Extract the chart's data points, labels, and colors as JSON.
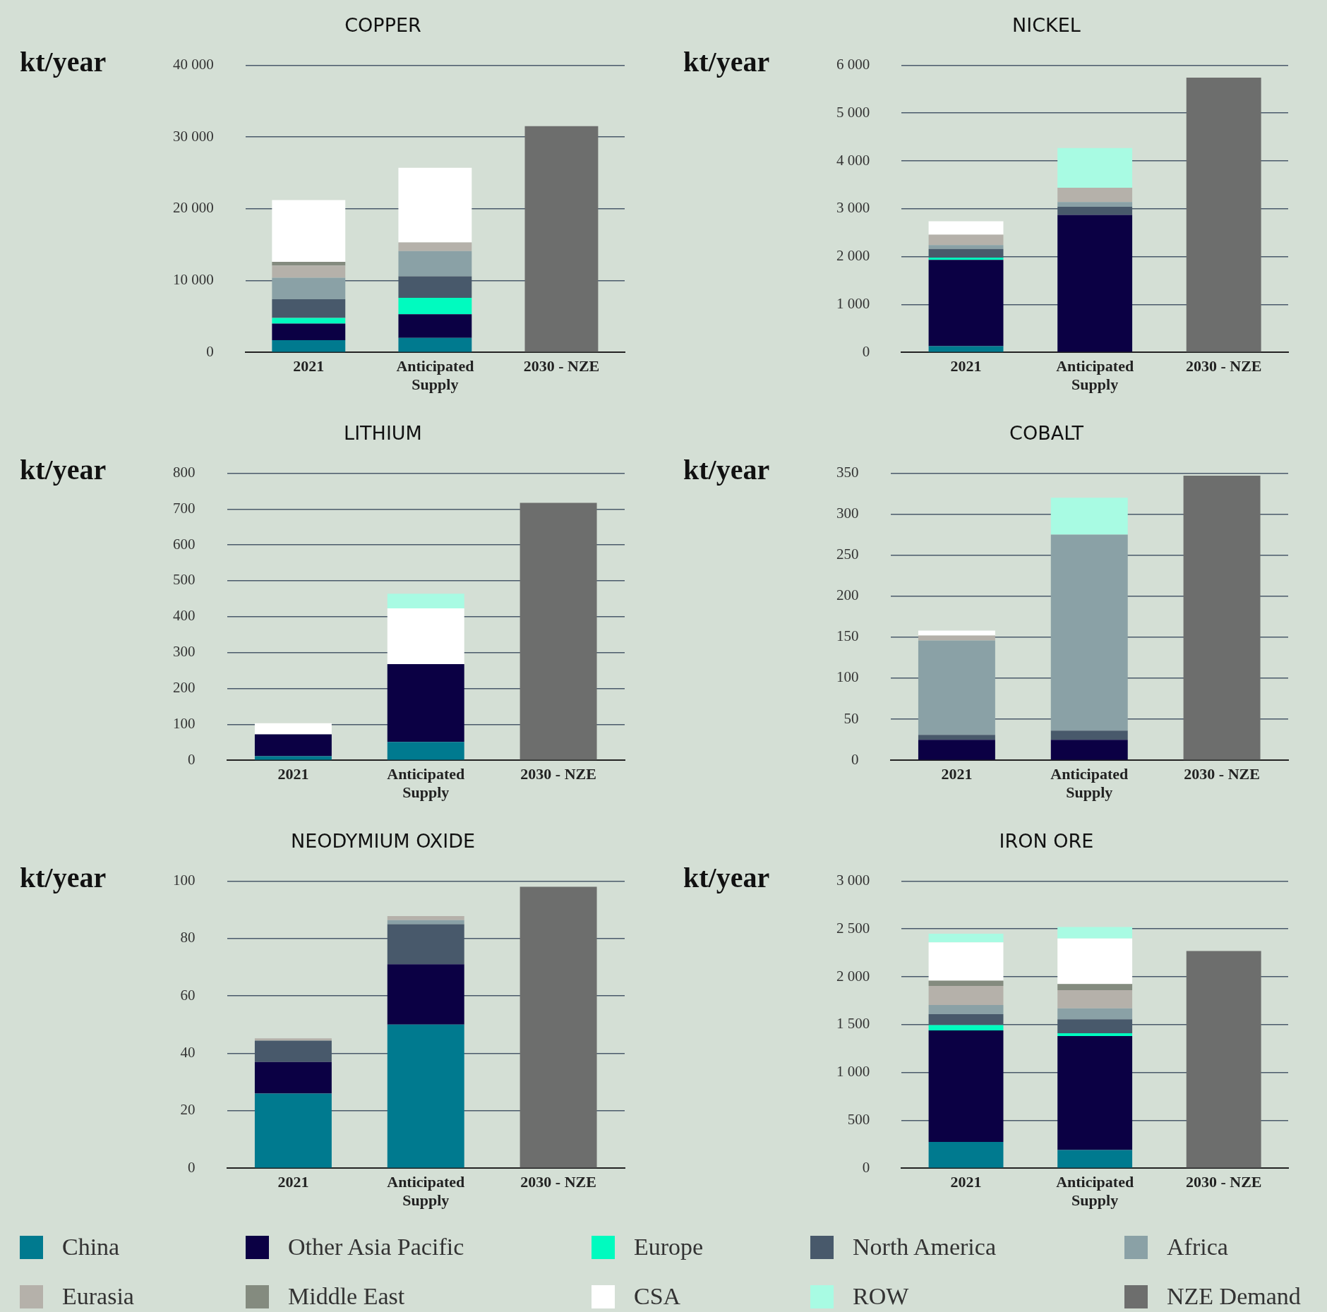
{
  "chart_data": [
    {
      "type": "bar",
      "title": "COPPER",
      "ylabel": "kt/year",
      "categories": [
        "2021",
        "Anticipated Supply",
        "2030 - NZE"
      ],
      "stacked": true,
      "grid": "y",
      "legend": "bottom",
      "ylim": [
        0,
        40000
      ],
      "yticks": [
        {
          "value": 0,
          "label": "0"
        },
        {
          "value": 10000,
          "label": "10 000"
        },
        {
          "value": 20000,
          "label": "20 000"
        },
        {
          "value": 30000,
          "label": "30 000"
        },
        {
          "value": 40000,
          "label": "40 000"
        }
      ],
      "series": [
        {
          "name": "China",
          "color": "#007a8f",
          "values": [
            1700,
            2000,
            null
          ]
        },
        {
          "name": "Other Asia Pacific",
          "color": "#0b0044",
          "values": [
            2300,
            3300,
            null
          ]
        },
        {
          "name": "Europe",
          "color": "#00fbbf",
          "values": [
            800,
            2300,
            null
          ]
        },
        {
          "name": "North America",
          "color": "#48596b",
          "values": [
            2600,
            3000,
            null
          ]
        },
        {
          "name": "Africa",
          "color": "#8aa1a6",
          "values": [
            3000,
            3500,
            null
          ]
        },
        {
          "name": "Eurasia",
          "color": "#b5b1aa",
          "values": [
            1700,
            1200,
            null
          ]
        },
        {
          "name": "Middle East",
          "color": "#848b7f",
          "values": [
            500,
            null,
            null
          ]
        },
        {
          "name": "CSA",
          "color": "#ffffff",
          "values": [
            8600,
            10400,
            null
          ]
        },
        {
          "name": "ROW",
          "color": "#a8fbe3",
          "values": [
            null,
            null,
            null
          ]
        },
        {
          "name": "NZE Demand",
          "color": "#6d6e6d",
          "values": [
            null,
            null,
            31500
          ]
        }
      ]
    },
    {
      "type": "bar",
      "title": "NICKEL",
      "ylabel": "kt/year",
      "categories": [
        "2021",
        "Anticipated Supply",
        "2030 - NZE"
      ],
      "stacked": true,
      "grid": "y",
      "ylim": [
        0,
        6000
      ],
      "yticks": [
        {
          "value": 0,
          "label": "0"
        },
        {
          "value": 1000,
          "label": "1 000"
        },
        {
          "value": 2000,
          "label": "2 000"
        },
        {
          "value": 3000,
          "label": "3 000"
        },
        {
          "value": 4000,
          "label": "4 000"
        },
        {
          "value": 5000,
          "label": "5 000"
        },
        {
          "value": 6000,
          "label": "6 000"
        }
      ],
      "series": [
        {
          "color": "#007a8f",
          "values": [
            130,
            null,
            null
          ]
        },
        {
          "color": "#0b0044",
          "values": [
            1800,
            2870,
            null
          ]
        },
        {
          "color": "#00fbbf",
          "values": [
            50,
            null,
            null
          ]
        },
        {
          "color": "#48596b",
          "values": [
            180,
            170,
            null
          ]
        },
        {
          "color": "#8aa1a6",
          "values": [
            80,
            100,
            null
          ]
        },
        {
          "color": "#b5b1aa",
          "values": [
            220,
            300,
            null
          ]
        },
        {
          "color": "#ffffff",
          "values": [
            280,
            null,
            null
          ]
        },
        {
          "color": "#a8fbe3",
          "values": [
            null,
            830,
            null
          ]
        },
        {
          "color": "#6d6e6d",
          "values": [
            null,
            null,
            5740
          ]
        }
      ]
    },
    {
      "type": "bar",
      "title": "LITHIUM",
      "ylabel": "kt/year",
      "categories": [
        "2021",
        "Anticipated Supply",
        "2030 - NZE"
      ],
      "stacked": true,
      "grid": "y",
      "ylim": [
        0,
        800
      ],
      "yticks": [
        0,
        100,
        200,
        300,
        400,
        500,
        600,
        700,
        800
      ],
      "series": [
        {
          "color": "#007a8f",
          "values": [
            11,
            51,
            null
          ]
        },
        {
          "color": "#0b0044",
          "values": [
            61,
            217,
            null
          ]
        },
        {
          "color": "#ffffff",
          "values": [
            31,
            155,
            null
          ]
        },
        {
          "color": "#a8fbe3",
          "values": [
            null,
            41,
            null
          ]
        },
        {
          "color": "#6d6e6d",
          "values": [
            null,
            null,
            717
          ]
        }
      ]
    },
    {
      "type": "bar",
      "title": "COBALT",
      "ylabel": "kt/year",
      "categories": [
        "2021",
        "Anticipated Supply",
        "2030 - NZE"
      ],
      "stacked": true,
      "grid": "y",
      "ylim": [
        0,
        350
      ],
      "yticks": [
        0,
        50,
        100,
        150,
        200,
        250,
        300,
        350
      ],
      "series": [
        {
          "color": "#0b0044",
          "values": [
            25,
            25,
            null
          ]
        },
        {
          "color": "#48596b",
          "values": [
            6,
            11,
            null
          ]
        },
        {
          "color": "#8aa1a6",
          "values": [
            115,
            239,
            null
          ]
        },
        {
          "color": "#b5b1aa",
          "values": [
            6,
            null,
            null
          ]
        },
        {
          "color": "#ffffff",
          "values": [
            6,
            null,
            null
          ]
        },
        {
          "color": "#a8fbe3",
          "values": [
            null,
            45,
            null
          ]
        },
        {
          "color": "#6d6e6d",
          "values": [
            null,
            null,
            347
          ]
        }
      ]
    },
    {
      "type": "bar",
      "title": "NEODYMIUM OXIDE",
      "ylabel": "kt/year",
      "categories": [
        "2021",
        "Anticipated Supply",
        "2030 - NZE"
      ],
      "stacked": true,
      "grid": "y",
      "ylim": [
        0,
        100
      ],
      "yticks": [
        0,
        20,
        40,
        60,
        80,
        100
      ],
      "series": [
        {
          "color": "#007a8f",
          "values": [
            26,
            50,
            null
          ]
        },
        {
          "color": "#0b0044",
          "values": [
            11,
            21,
            null
          ]
        },
        {
          "color": "#48596b",
          "values": [
            7.4,
            14,
            null
          ]
        },
        {
          "color": "#8aa1a6",
          "values": [
            null,
            1.4,
            null
          ]
        },
        {
          "color": "#b5b1aa",
          "values": [
            0.8,
            1.4,
            null
          ]
        },
        {
          "color": "#6d6e6d",
          "values": [
            null,
            null,
            98
          ]
        }
      ]
    },
    {
      "type": "bar",
      "title": "IRON ORE",
      "ylabel": "kt/year",
      "categories": [
        "2021",
        "Anticipated Supply",
        "2030 - NZE"
      ],
      "stacked": true,
      "grid": "y",
      "ylim": [
        0,
        3000
      ],
      "yticks": [
        {
          "value": 0,
          "label": "0"
        },
        {
          "value": 500,
          "label": "500"
        },
        {
          "value": 1000,
          "label": "1 000"
        },
        {
          "value": 1500,
          "label": "1 500"
        },
        {
          "value": 2000,
          "label": "2 000"
        },
        {
          "value": 2500,
          "label": "2 500"
        },
        {
          "value": 3000,
          "label": "3 000"
        }
      ],
      "series": [
        {
          "color": "#007a8f",
          "values": [
            275,
            190,
            null
          ]
        },
        {
          "color": "#0b0044",
          "values": [
            1165,
            1190,
            null
          ]
        },
        {
          "color": "#00fbbf",
          "values": [
            55,
            30,
            null
          ]
        },
        {
          "color": "#48596b",
          "values": [
            115,
            145,
            null
          ]
        },
        {
          "color": "#8aa1a6",
          "values": [
            95,
            115,
            null
          ]
        },
        {
          "color": "#b5b1aa",
          "values": [
            200,
            190,
            null
          ]
        },
        {
          "color": "#848b7f",
          "values": [
            55,
            65,
            null
          ]
        },
        {
          "color": "#ffffff",
          "values": [
            400,
            475,
            null
          ]
        },
        {
          "color": "#a8fbe3",
          "values": [
            90,
            120,
            null
          ]
        },
        {
          "color": "#6d6e6d",
          "values": [
            null,
            null,
            2270
          ]
        }
      ]
    }
  ]
}
